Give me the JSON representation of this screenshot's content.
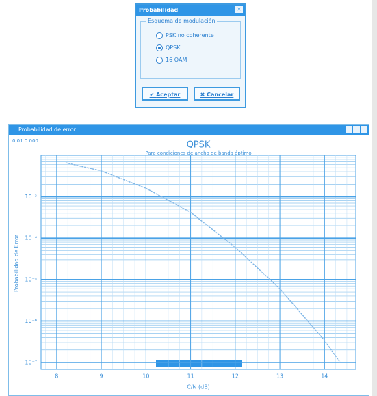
{
  "dialog": {
    "title": "Probabilidad",
    "group_label": "Esquema de modulación",
    "options": [
      "PSK no coherente",
      "QPSK",
      "16 QAM"
    ],
    "selected": 1,
    "ok_button": "Aceptar",
    "cancel_button": "Cancelar"
  },
  "window": {
    "title": "Probabilidad de error",
    "status_text": "0.01 0.000"
  },
  "chart_data": {
    "type": "line",
    "title": "QPSK",
    "subtitle": "Para condiciones de ancho de banda óptimo",
    "x_label": "C/N (dB)",
    "y_label": "Probabilidad de Error",
    "log_y": true,
    "grid": true,
    "xlim": [
      7.65,
      14.7
    ],
    "xticks": [
      8,
      9,
      10,
      11,
      12,
      13,
      14
    ],
    "ylim": [
      1e-07,
      0.01
    ],
    "yticks": [
      {
        "value": 0.001,
        "label": "10⁻³"
      },
      {
        "value": 0.0001,
        "label": "10⁻⁴"
      },
      {
        "value": 1e-05,
        "label": "10⁻⁵"
      },
      {
        "value": 1e-06,
        "label": "10⁻⁶"
      },
      {
        "value": 1e-07,
        "label": "10⁻⁷"
      }
    ],
    "x": [
      8.2,
      9,
      10,
      11,
      12,
      13,
      14,
      14.35
    ],
    "series": [
      {
        "name": "QPSK",
        "color": "#7fb6e6",
        "values": [
          0.0066,
          0.0042,
          0.0016,
          0.00042,
          6e-05,
          6e-06,
          3.4e-07,
          1e-07
        ]
      }
    ]
  }
}
